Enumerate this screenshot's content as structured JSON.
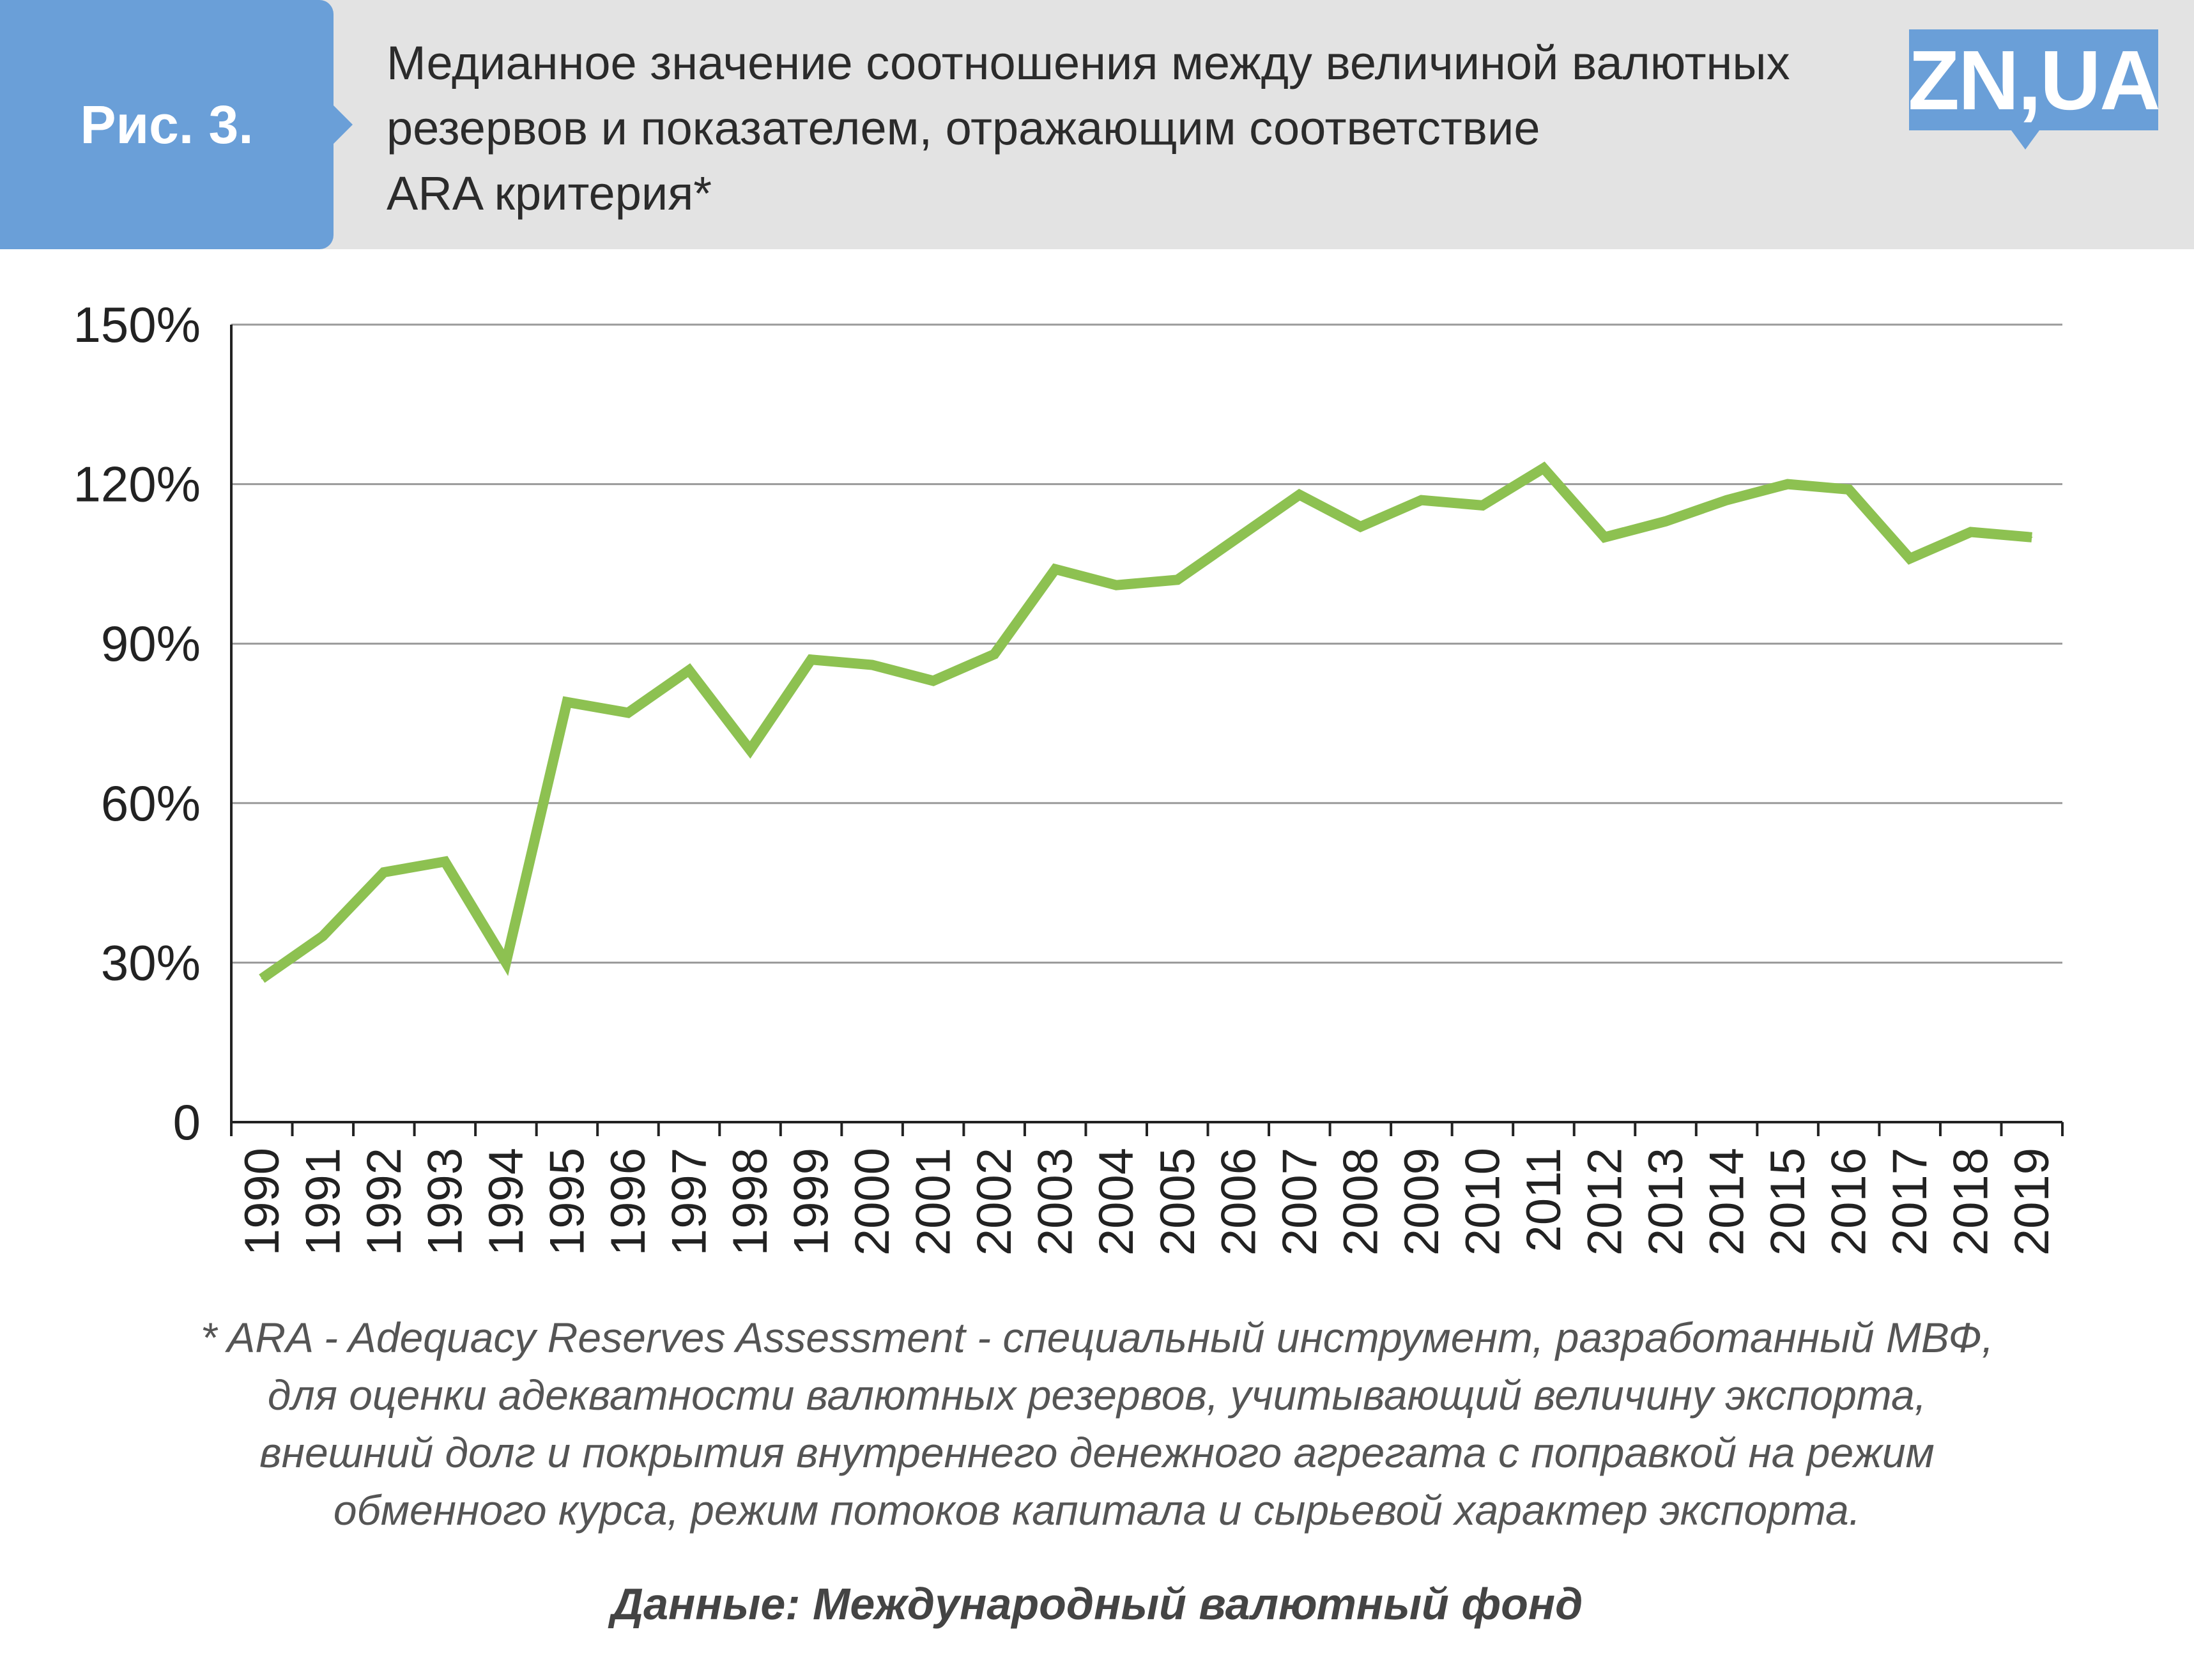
{
  "header": {
    "figure_label": "Рис. 3.",
    "title": "Медианное значение соотношения между величиной валютных\nрезервов и показателем, отражающим соответствие\nARA критерия*",
    "logo_text": "ZN,UA",
    "badge_color": "#6a9fd8"
  },
  "chart_data": {
    "type": "line",
    "x": [
      "1990",
      "1991",
      "1992",
      "1993",
      "1994",
      "1995",
      "1996",
      "1997",
      "1998",
      "1999",
      "2000",
      "2001",
      "2002",
      "2003",
      "2004",
      "2005",
      "2006",
      "2007",
      "2008",
      "2009",
      "2010",
      "2011",
      "2012",
      "2013",
      "2014",
      "2015",
      "2016",
      "2017",
      "2018",
      "2019"
    ],
    "series": [
      {
        "values": [
          27,
          35,
          47,
          49,
          30,
          79,
          77,
          85,
          70,
          87,
          86,
          83,
          88,
          104,
          101,
          102,
          110,
          118,
          112,
          117,
          116,
          123,
          110,
          113,
          117,
          120,
          119,
          106,
          111,
          110
        ],
        "color": "#8dc151"
      }
    ],
    "ylim": [
      0,
      150
    ],
    "yticks": [
      0,
      30,
      60,
      90,
      120,
      150
    ],
    "ytick_labels": [
      "0",
      "30%",
      "60%",
      "90%",
      "120%",
      "150%"
    ],
    "xtick_rotation": "vertical",
    "grid": "horizontal",
    "legend": "none",
    "xlabel": "",
    "ylabel": ""
  },
  "footer": {
    "footnote": "* ARA - Adequacy Reserves Assessment - специальный инструмент, разработанный МВФ,\nдля оценки адекватности валютных резервов, учитывающий величину экспорта,\nвнешний долг и покрытия внутреннего денежного агрегата с поправкой на режим\nобменного курса, режим потоков капитала и сырьевой характер экспорта.",
    "source": "Данные: Международный валютный фонд"
  }
}
